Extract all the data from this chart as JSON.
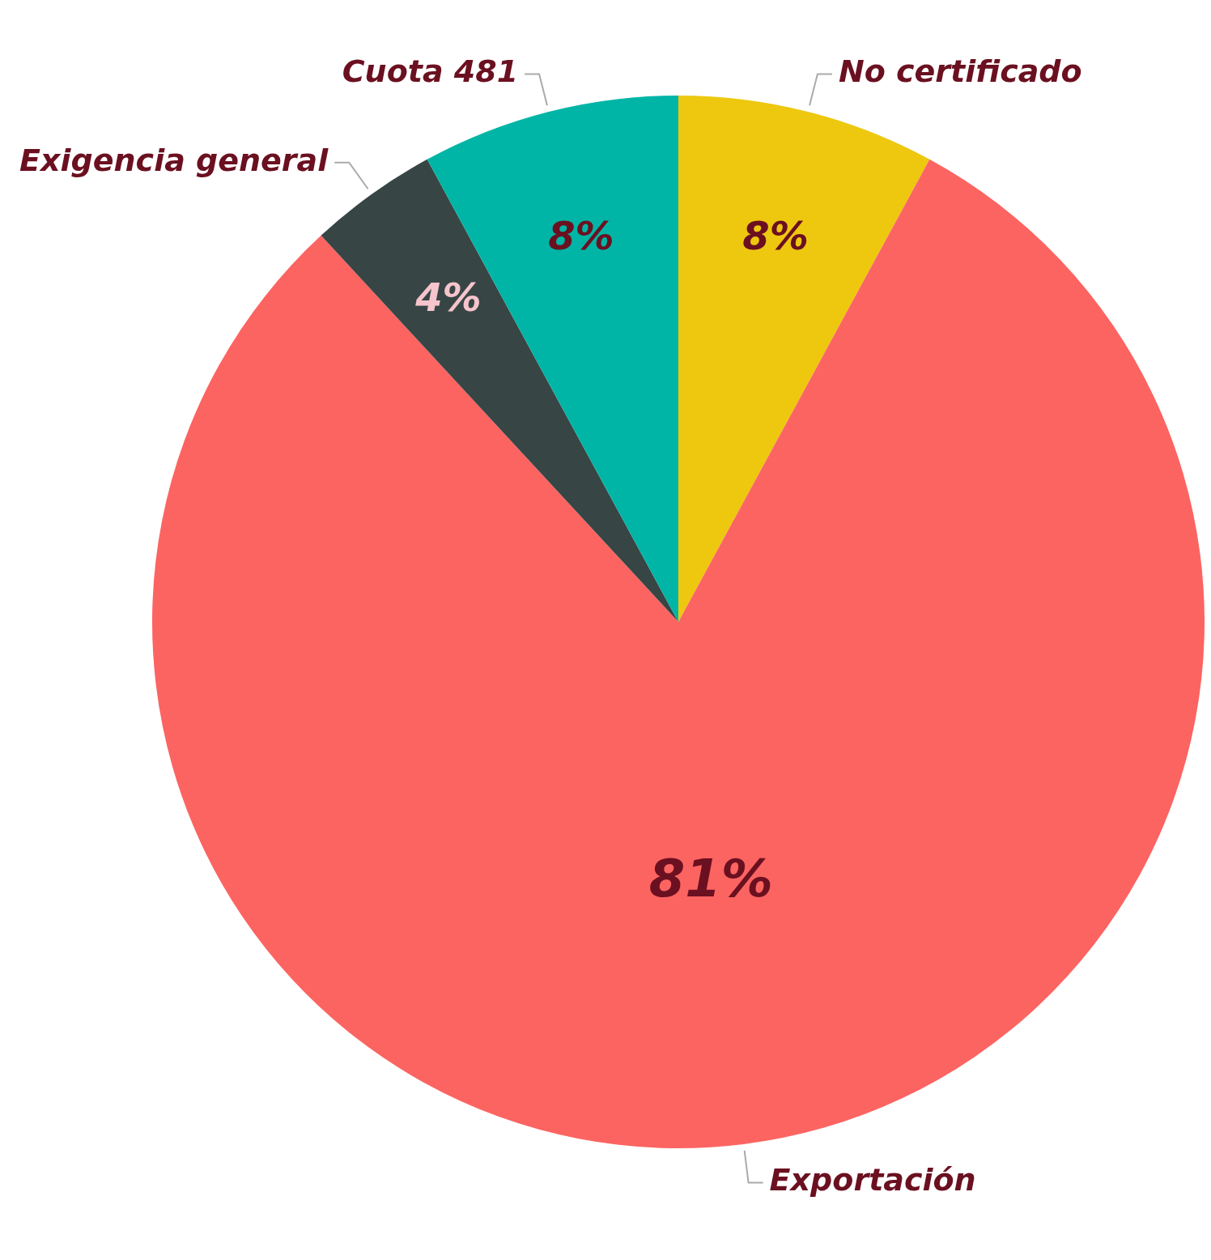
{
  "chart_data": {
    "type": "pie",
    "categories": [
      "No certificado",
      "Exportación",
      "Exigencia general",
      "Cuota 481"
    ],
    "values": [
      8,
      81,
      4,
      8
    ],
    "value_labels": [
      "8%",
      "81%",
      "4%",
      "8%"
    ],
    "colors": [
      "#edc80f",
      "#fc6461",
      "#374545",
      "#00b5a6"
    ]
  }
}
